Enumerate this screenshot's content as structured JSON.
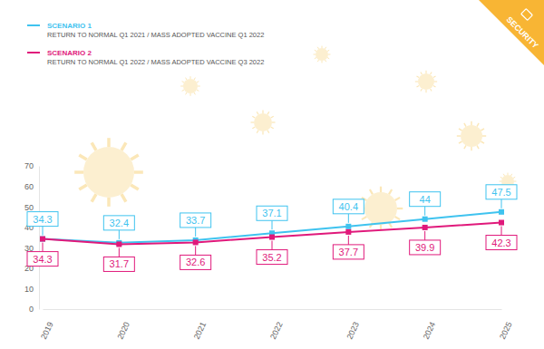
{
  "chart_data": {
    "type": "line",
    "annotations": [
      "SECURITY"
    ],
    "categories": [
      "2019",
      "2020",
      "2021",
      "2022",
      "2023",
      "2024",
      "2025"
    ],
    "series": [
      {
        "name": "SCENARIO 1",
        "description": "RETURN TO NORMAL Q1 2021 / MASS ADOPTED VACCINE Q1 2022",
        "color": "#3fc3ef",
        "marker": "square",
        "values": [
          34.3,
          32.4,
          33.7,
          37.1,
          40.4,
          44,
          47.5
        ]
      },
      {
        "name": "SCENARIO 2",
        "description": "RETURN TO NORMAL Q1 2022 / MASS ADOPTED VACCINE Q3 2022",
        "color": "#e0197b",
        "marker": "square",
        "values": [
          34.3,
          31.7,
          32.6,
          35.2,
          37.7,
          39.9,
          42.3
        ]
      }
    ],
    "ylim": [
      0,
      70
    ],
    "yticks": [
      0,
      10,
      20,
      30,
      40,
      50,
      60,
      70
    ],
    "grid": false,
    "data_labels": true,
    "legend": "top-left"
  }
}
